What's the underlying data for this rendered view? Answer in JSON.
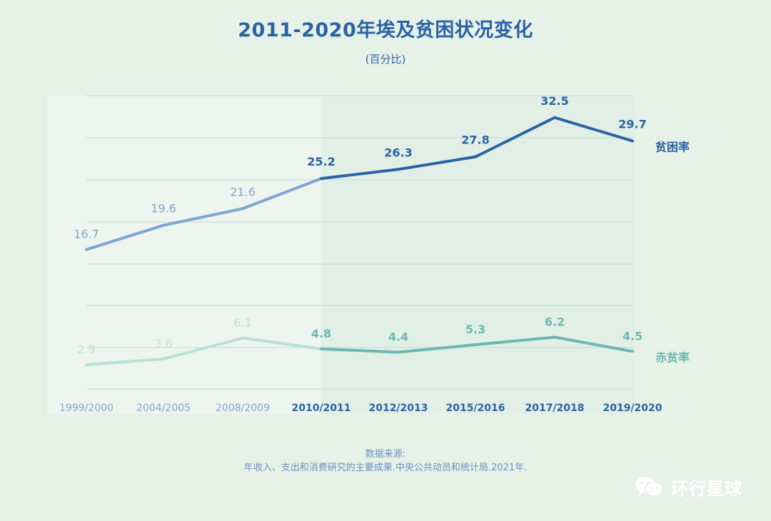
{
  "title": "2011-2020年埃及贫困状况变化",
  "subtitle": "(百分比)",
  "source_label": "数据来源:",
  "source_text": "年收入、支出和消费研究的主要成果.中央公共动员和统计局.2021年.",
  "brand": {
    "icon": "wechat-icon",
    "name": "环行星球"
  },
  "colors": {
    "background": "#e6f1e8",
    "title": "#2b63a5",
    "poverty_dark": "#2b63a5",
    "poverty_light": "#7fa6cf",
    "extreme_dark": "#6bb9ae",
    "extreme_light": "#b9dfd8",
    "grid": "#bcdcd4",
    "tick_light": "#7fa6cf",
    "tick_dark": "#2b63a5"
  },
  "chart_data": {
    "type": "line",
    "title": "2011-2020年埃及贫困状况变化",
    "subtitle": "(百分比)",
    "unit": "百分比",
    "categories": [
      "1999/2000",
      "2004/2005",
      "2008/2009",
      "2010/2011",
      "2012/2013",
      "2015/2016",
      "2017/2018",
      "2019/2020"
    ],
    "highlight_from_index": 3,
    "ylim": [
      0,
      36
    ],
    "grid": true,
    "series": [
      {
        "name": "贫困率",
        "values": [
          16.7,
          19.6,
          21.6,
          25.2,
          26.3,
          27.8,
          32.5,
          29.7
        ],
        "labels": [
          "16.7",
          "19.6",
          "21.6",
          "25.2",
          "26.3",
          "27.8",
          "32.5",
          "29.7"
        ]
      },
      {
        "name": "赤贫率",
        "values": [
          2.9,
          3.6,
          6.1,
          4.8,
          4.4,
          5.3,
          6.2,
          4.5
        ],
        "labels": [
          "2.9",
          "3.6",
          "6.1",
          "4.8",
          "4.4",
          "5.3",
          "6.2",
          "4.5"
        ]
      }
    ]
  }
}
